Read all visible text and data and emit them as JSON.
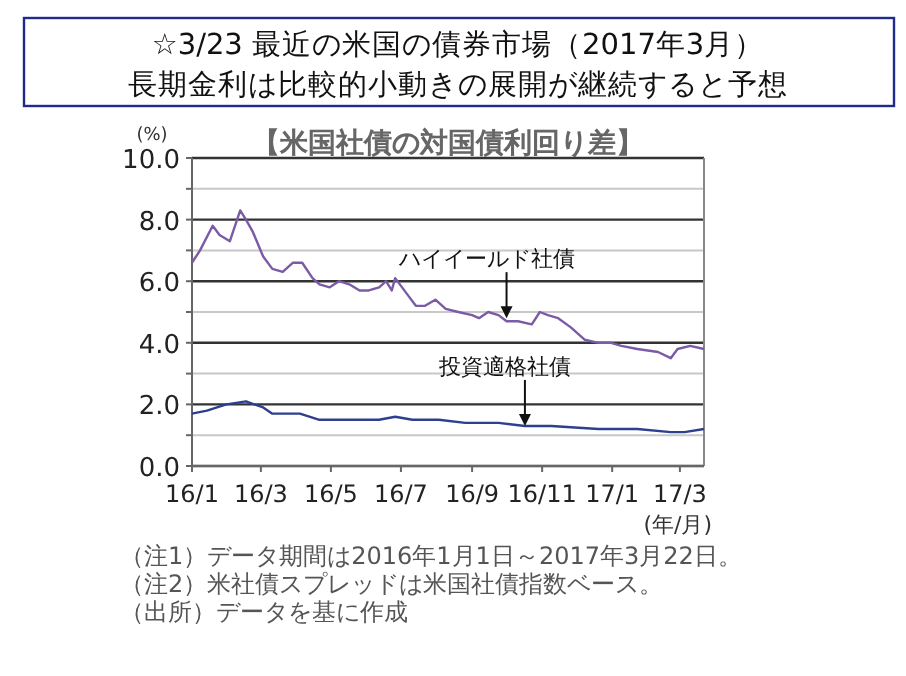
{
  "chart_data": {
    "type": "line",
    "title": "☆3/23  最近の米国の債券市場（2017年3月）",
    "subtitle": "長期金利は比較的小動きの展開が継続すると予想",
    "ylabel": "(%)",
    "xlabel": "(年/月)",
    "xlim": [
      "2016-01-01",
      "2017-03-22"
    ],
    "xticks": [
      {
        "value": "2016-01-01",
        "label": "16/1"
      },
      {
        "value": "2016-03-01",
        "label": "16/3"
      },
      {
        "value": "2016-05-01",
        "label": "16/5"
      },
      {
        "value": "2016-07-01",
        "label": "16/7"
      },
      {
        "value": "2016-09-01",
        "label": "16/9"
      },
      {
        "value": "2016-11-01",
        "label": "16/11"
      },
      {
        "value": "2017-01-01",
        "label": "17/1"
      },
      {
        "value": "2017-03-01",
        "label": "17/3"
      }
    ],
    "ylim": [
      0,
      10
    ],
    "yticks": [
      {
        "value": 0,
        "label": "0.0"
      },
      {
        "value": 1,
        "label": null
      },
      {
        "value": 2,
        "label": "2.0"
      },
      {
        "value": 3,
        "label": null
      },
      {
        "value": 4,
        "label": "4.0"
      },
      {
        "value": 5,
        "label": null
      },
      {
        "value": 6,
        "label": "6.0"
      },
      {
        "value": 7,
        "label": null
      },
      {
        "value": 8,
        "label": "8.0"
      },
      {
        "value": 9,
        "label": null
      },
      {
        "value": 10,
        "label": "10.0"
      }
    ],
    "grid": "y",
    "series": [
      {
        "color": "#7b5aa6",
        "x": [
          "2016-01-01",
          "2016-01-08",
          "2016-01-19",
          "2016-01-25",
          "2016-02-03",
          "2016-02-12",
          "2016-02-17",
          "2016-02-23",
          "2016-03-03",
          "2016-03-11",
          "2016-03-20",
          "2016-03-29",
          "2016-04-06",
          "2016-04-15",
          "2016-04-21",
          "2016-04-30",
          "2016-05-08",
          "2016-05-17",
          "2016-05-26",
          "2016-06-03",
          "2016-06-12",
          "2016-06-15",
          "2016-06-18",
          "2016-06-23",
          "2016-06-26",
          "2016-07-02",
          "2016-07-08",
          "2016-07-14",
          "2016-07-22",
          "2016-07-31",
          "2016-08-09",
          "2016-08-20",
          "2016-09-01",
          "2016-09-07",
          "2016-09-15",
          "2016-09-24",
          "2016-10-01",
          "2016-10-11",
          "2016-10-23",
          "2016-10-30",
          "2016-11-06",
          "2016-11-15",
          "2016-11-26",
          "2016-12-08",
          "2016-12-20",
          "2016-12-31",
          "2017-01-09",
          "2017-01-23",
          "2017-02-10",
          "2017-02-21",
          "2017-02-27",
          "2017-03-10",
          "2017-03-22"
        ],
        "values": [
          6.6,
          7.0,
          7.8,
          7.5,
          7.3,
          8.3,
          8.0,
          7.6,
          6.8,
          6.4,
          6.3,
          6.6,
          6.6,
          6.1,
          5.9,
          5.8,
          6.0,
          5.9,
          5.7,
          5.7,
          5.8,
          5.9,
          6.0,
          5.7,
          6.1,
          5.8,
          5.5,
          5.2,
          5.2,
          5.4,
          5.1,
          5.0,
          4.9,
          4.8,
          5.0,
          4.9,
          4.7,
          4.7,
          4.6,
          5.0,
          4.9,
          4.8,
          4.5,
          4.1,
          4.0,
          4.0,
          3.9,
          3.8,
          3.7,
          3.5,
          3.8,
          3.9,
          3.8
        ]
      },
      {
        "color": "#2e3f8f",
        "x": [
          "2016-01-01",
          "2016-01-14",
          "2016-01-31",
          "2016-02-17",
          "2016-03-03",
          "2016-03-11",
          "2016-04-04",
          "2016-04-21",
          "2016-05-14",
          "2016-06-12",
          "2016-06-26",
          "2016-07-11",
          "2016-08-03",
          "2016-08-26",
          "2016-09-24",
          "2016-10-17",
          "2016-10-29",
          "2016-11-09",
          "2016-12-20",
          "2017-01-23",
          "2017-02-21",
          "2017-03-05",
          "2017-03-22"
        ],
        "values": [
          1.7,
          1.8,
          2.0,
          2.1,
          1.9,
          1.7,
          1.7,
          1.5,
          1.5,
          1.5,
          1.6,
          1.5,
          1.5,
          1.4,
          1.4,
          1.3,
          1.3,
          1.3,
          1.2,
          1.2,
          1.1,
          1.1,
          1.2
        ]
      }
    ],
    "annotations": [
      "【米国社債の対国債利回り差】",
      {
        "text": "ハイイールド社債",
        "x": "2016-10-01",
        "y": 4.8
      },
      {
        "text": "投資適格社債",
        "x": "2016-10-17",
        "y": 1.3
      },
      "（注1）データ期間は2016年1月1日～2017年3月22日。",
      "（注2）米社債スプレッドは米国社債指数ベース。",
      "（出所）データを基に作成"
    ]
  }
}
